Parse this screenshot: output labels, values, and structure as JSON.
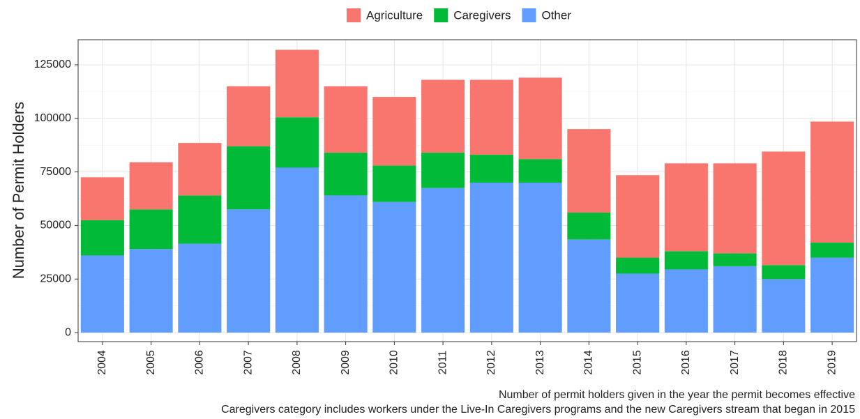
{
  "chart_data": {
    "type": "stacked_bar",
    "y_label": "Number of Permit Holders",
    "notes": [
      "Number of permit holders given in the year the permit becomes effective",
      "Caregivers category includes workers under the Live-In Caregivers programs and the new Caregivers stream that began in 2015"
    ],
    "categories": [
      "2004",
      "2005",
      "2006",
      "2007",
      "2008",
      "2009",
      "2010",
      "2011",
      "2012",
      "2013",
      "2014",
      "2015",
      "2016",
      "2017",
      "2018",
      "2019"
    ],
    "series": [
      {
        "name": "Agriculture",
        "color": "#f8766d",
        "values": [
          20000,
          22000,
          24500,
          28000,
          31500,
          31000,
          32000,
          34000,
          35000,
          38000,
          39000,
          38500,
          41000,
          42000,
          53000,
          56500
        ]
      },
      {
        "name": "Caregivers",
        "color": "#00ba38",
        "values": [
          16500,
          18500,
          22500,
          29500,
          23500,
          20000,
          17000,
          16500,
          13000,
          11000,
          12500,
          7500,
          8500,
          6000,
          6500,
          7000
        ]
      },
      {
        "name": "Other",
        "color": "#619cff",
        "values": [
          36000,
          39000,
          41500,
          57500,
          77000,
          64000,
          61000,
          67500,
          70000,
          70000,
          43500,
          27500,
          29500,
          31000,
          25000,
          35000
        ]
      }
    ],
    "ylim": [
      -4200,
      136700
    ],
    "yticks": [
      0,
      25000,
      50000,
      75000,
      100000,
      125000
    ],
    "grid": true
  }
}
